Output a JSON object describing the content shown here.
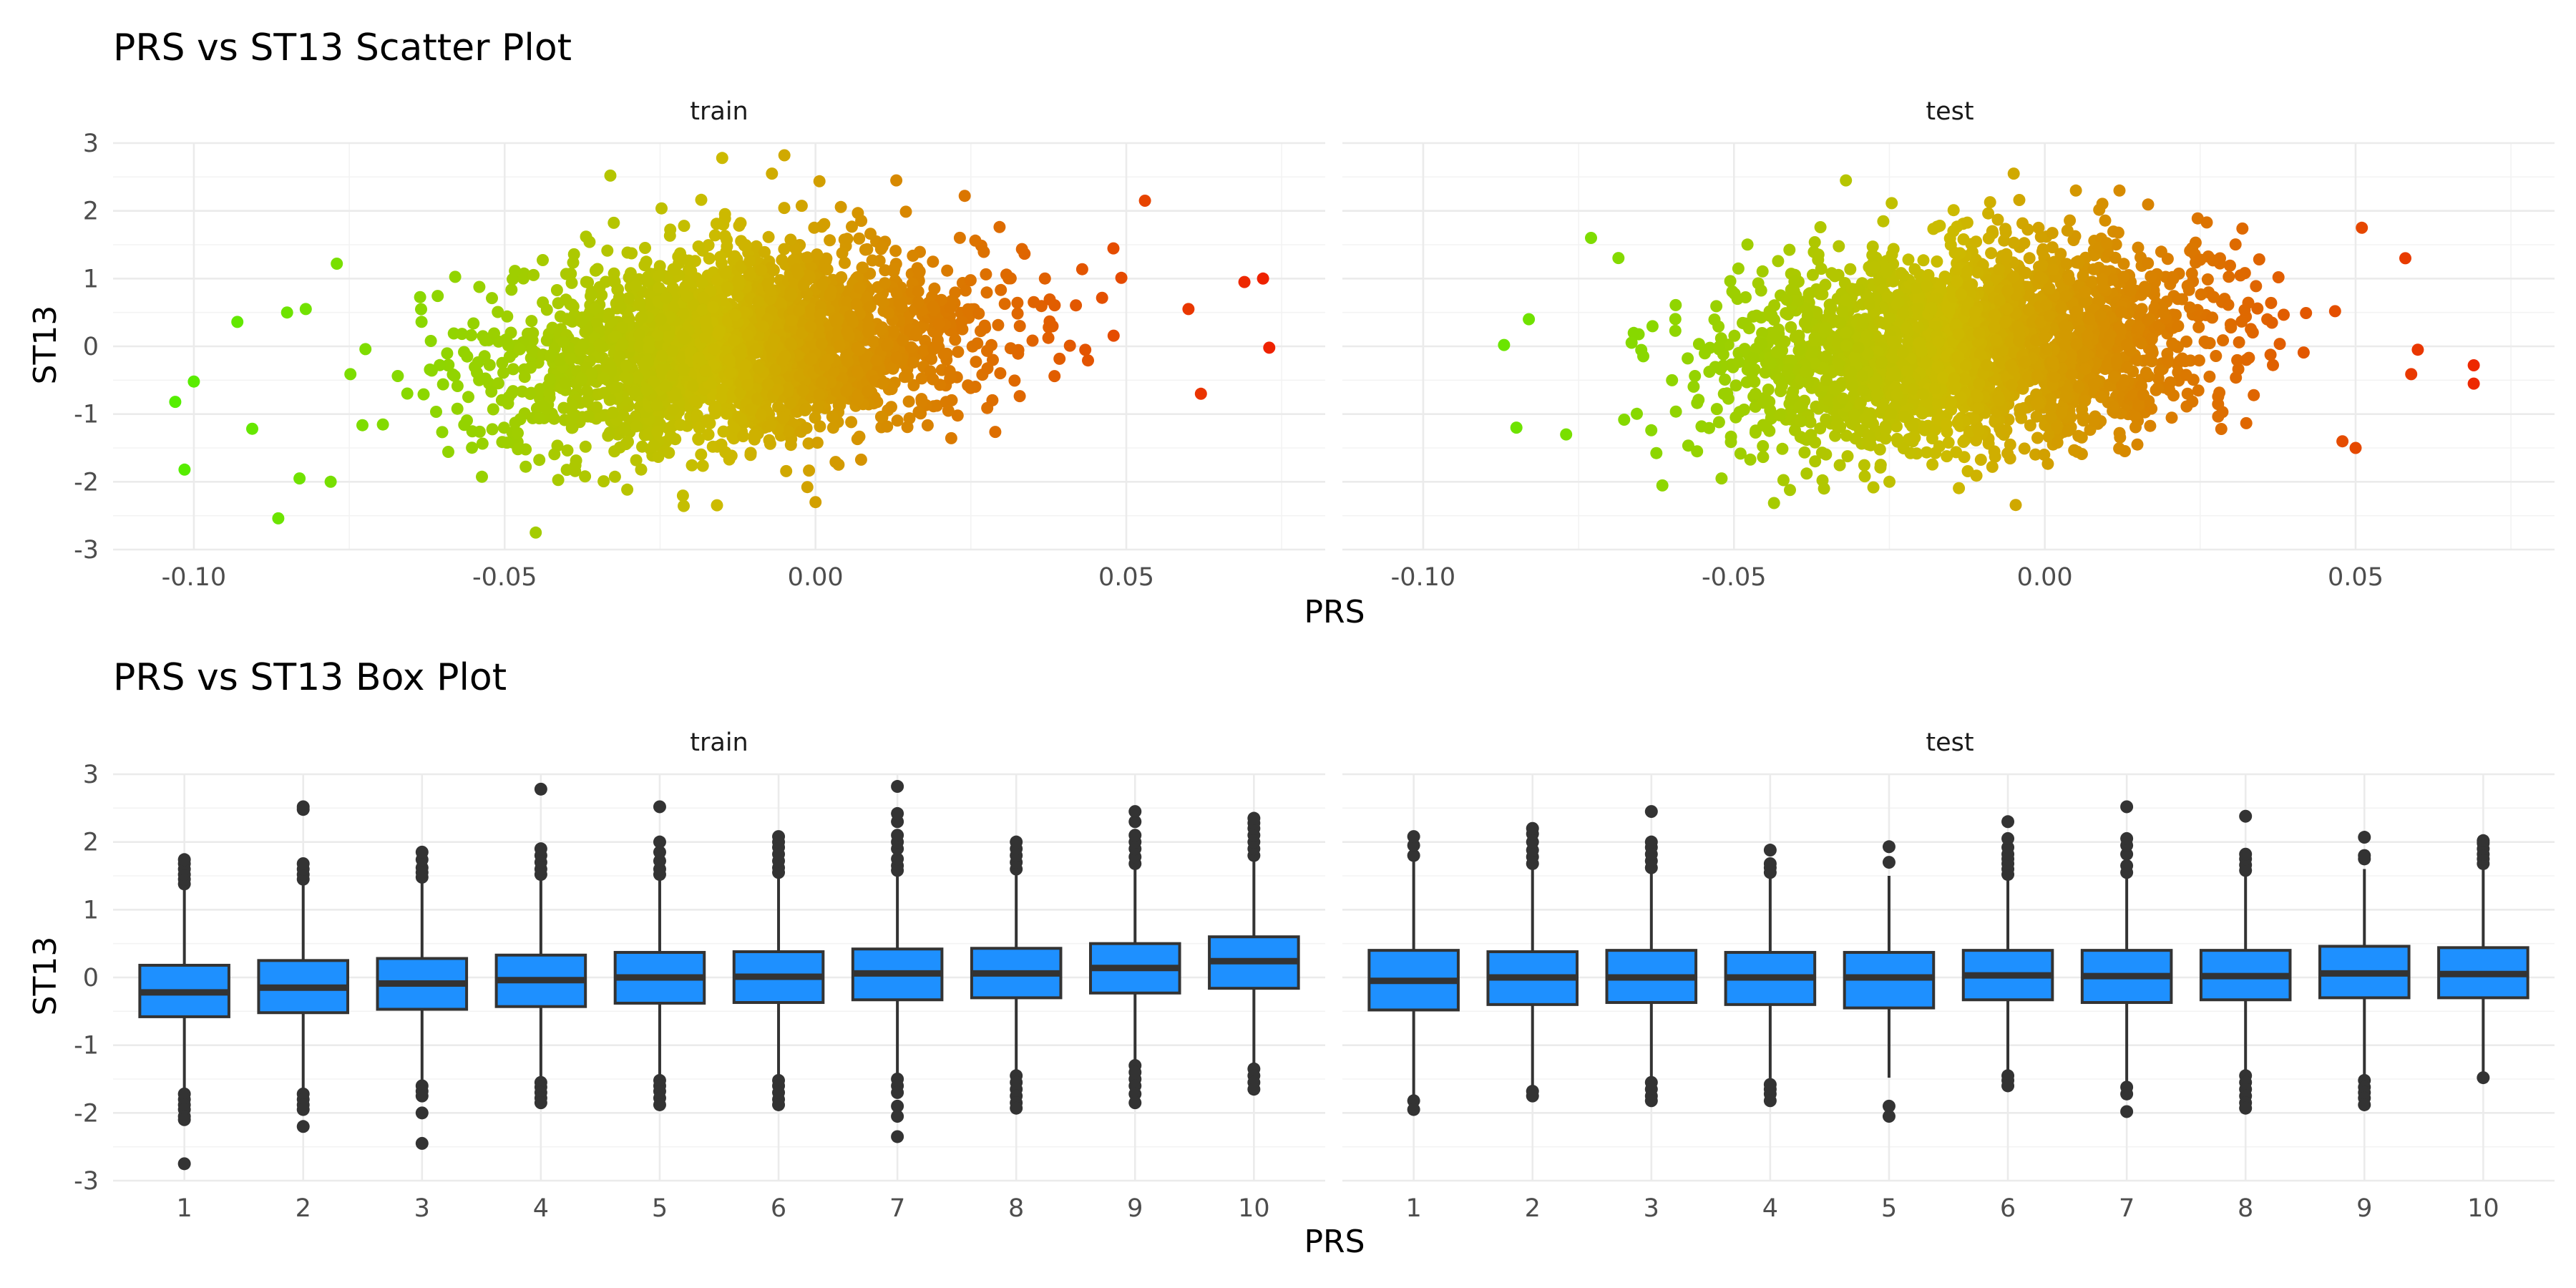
{
  "figure": {
    "scatter_title": "PRS vs ST13 Scatter Plot",
    "box_title": "PRS vs ST13 Box Plot",
    "xlabel": "PRS",
    "ylabel": "ST13",
    "facets": [
      "train",
      "test"
    ]
  },
  "chart_data": [
    {
      "type": "scatter",
      "title": "PRS vs ST13 Scatter Plot",
      "xlabel": "PRS",
      "ylabel": "ST13",
      "xlim": [
        -0.113,
        0.082
      ],
      "ylim": [
        -3,
        3
      ],
      "x_ticks": [
        -0.1,
        -0.05,
        0.0,
        0.05
      ],
      "x_tick_labels": [
        "-0.10",
        "-0.05",
        "0.00",
        "0.05"
      ],
      "y_ticks": [
        -3,
        -2,
        -1,
        0,
        1,
        2,
        3
      ],
      "y_tick_labels": [
        "-3",
        "-2",
        "-1",
        "0",
        "1",
        "2",
        "3"
      ],
      "grid": true,
      "legend": "none",
      "color_scale": {
        "low": "#55ee00",
        "mid": "#ccbb00",
        "high": "#ee2200",
        "mapped_to": "PRS"
      },
      "panels": [
        {
          "facet": "train",
          "point_summary": {
            "x_mean": -0.012,
            "x_sd": 0.019,
            "y_mean": 0.0,
            "y_sd": 0.72,
            "correlation": 0.2
          },
          "extreme_points": [
            [
              -0.1015,
              -1.82
            ],
            [
              -0.103,
              -0.82
            ],
            [
              -0.1,
              -0.52
            ],
            [
              -0.093,
              0.36
            ],
            [
              -0.085,
              0.5
            ],
            [
              -0.082,
              0.55
            ],
            [
              -0.077,
              1.22
            ],
            [
              -0.078,
              -2.0
            ],
            [
              -0.083,
              -1.95
            ],
            [
              -0.045,
              -2.75
            ],
            [
              -0.033,
              2.52
            ],
            [
              -0.015,
              2.78
            ],
            [
              -0.007,
              2.55
            ],
            [
              -0.005,
              2.82
            ],
            [
              0.0,
              -2.3
            ],
            [
              0.013,
              2.45
            ],
            [
              0.053,
              2.15
            ],
            [
              0.06,
              0.55
            ],
            [
              0.062,
              -0.7
            ],
            [
              0.069,
              0.95
            ],
            [
              0.072,
              1.0
            ],
            [
              0.073,
              -0.02
            ]
          ]
        },
        {
          "facet": "test",
          "point_summary": {
            "x_mean": -0.012,
            "x_sd": 0.019,
            "y_mean": 0.0,
            "y_sd": 0.72,
            "correlation": 0.2
          },
          "extreme_points": [
            [
              -0.087,
              0.02
            ],
            [
              -0.085,
              -1.2
            ],
            [
              -0.083,
              0.4
            ],
            [
              -0.073,
              1.6
            ],
            [
              -0.077,
              -1.3
            ],
            [
              -0.052,
              -1.95
            ],
            [
              -0.032,
              2.45
            ],
            [
              -0.025,
              -2.0
            ],
            [
              -0.005,
              2.55
            ],
            [
              0.005,
              2.3
            ],
            [
              0.051,
              1.75
            ],
            [
              0.05,
              -1.5
            ],
            [
              0.058,
              1.3
            ],
            [
              0.06,
              -0.05
            ],
            [
              0.069,
              -0.28
            ],
            [
              0.069,
              -0.55
            ]
          ]
        }
      ]
    },
    {
      "type": "box",
      "title": "PRS vs ST13 Box Plot",
      "xlabel": "PRS",
      "ylabel": "ST13",
      "categories": [
        "1",
        "2",
        "3",
        "4",
        "5",
        "6",
        "7",
        "8",
        "9",
        "10"
      ],
      "ylim": [
        -3,
        3
      ],
      "y_ticks": [
        -3,
        -2,
        -1,
        0,
        1,
        2,
        3
      ],
      "y_tick_labels": [
        "-3",
        "-2",
        "-1",
        "0",
        "1",
        "2",
        "3"
      ],
      "grid": true,
      "box_color": "#1e90ff",
      "outline_color": "#333333",
      "panels": [
        {
          "facet": "train",
          "boxes": [
            {
              "q1": -0.58,
              "median": -0.22,
              "q3": 0.18,
              "low": -1.7,
              "high": 1.3,
              "outliers": [
                1.38,
                1.45,
                1.52,
                1.6,
                1.68,
                1.74,
                -1.72,
                -1.8,
                -1.88,
                -1.95,
                -2.05,
                -2.1,
                -2.75
              ]
            },
            {
              "q1": -0.52,
              "median": -0.15,
              "q3": 0.25,
              "low": -1.65,
              "high": 1.38,
              "outliers": [
                1.45,
                1.52,
                1.6,
                1.68,
                2.48,
                2.52,
                -1.72,
                -1.8,
                -1.88,
                -1.95,
                -2.2
              ]
            },
            {
              "q1": -0.47,
              "median": -0.09,
              "q3": 0.28,
              "low": -1.56,
              "high": 1.4,
              "outliers": [
                1.48,
                1.55,
                1.62,
                1.74,
                1.85,
                -1.6,
                -1.68,
                -1.75,
                -2.0,
                -2.45
              ]
            },
            {
              "q1": -0.43,
              "median": -0.04,
              "q3": 0.33,
              "low": -1.5,
              "high": 1.45,
              "outliers": [
                1.52,
                1.6,
                1.7,
                1.8,
                1.9,
                2.78,
                -1.55,
                -1.62,
                -1.7,
                -1.78,
                -1.85
              ]
            },
            {
              "q1": -0.38,
              "median": 0.0,
              "q3": 0.37,
              "low": -1.48,
              "high": 1.45,
              "outliers": [
                1.52,
                1.6,
                1.72,
                1.85,
                2.0,
                2.52,
                -1.52,
                -1.6,
                -1.68,
                -1.78,
                -1.88
              ]
            },
            {
              "q1": -0.37,
              "median": 0.01,
              "q3": 0.38,
              "low": -1.48,
              "high": 1.48,
              "outliers": [
                1.55,
                1.62,
                1.72,
                1.82,
                1.92,
                2.0,
                2.08,
                -1.52,
                -1.6,
                -1.7,
                -1.8,
                -1.88
              ]
            },
            {
              "q1": -0.33,
              "median": 0.06,
              "q3": 0.42,
              "low": -1.45,
              "high": 1.5,
              "outliers": [
                1.58,
                1.65,
                1.75,
                1.9,
                2.0,
                2.1,
                2.3,
                2.42,
                2.82,
                -1.5,
                -1.6,
                -1.7,
                -1.9,
                -2.05,
                -2.35
              ]
            },
            {
              "q1": -0.3,
              "median": 0.06,
              "q3": 0.43,
              "low": -1.4,
              "high": 1.52,
              "outliers": [
                1.6,
                1.7,
                1.8,
                1.9,
                2.0,
                -1.45,
                -1.55,
                -1.65,
                -1.75,
                -1.85,
                -1.93
              ]
            },
            {
              "q1": -0.23,
              "median": 0.14,
              "q3": 0.5,
              "low": -1.25,
              "high": 1.6,
              "outliers": [
                1.68,
                1.78,
                1.9,
                2.0,
                2.1,
                2.3,
                2.45,
                -1.3,
                -1.4,
                -1.5,
                -1.6,
                -1.72,
                -1.85
              ]
            },
            {
              "q1": -0.16,
              "median": 0.24,
              "q3": 0.6,
              "low": -1.3,
              "high": 1.72,
              "outliers": [
                1.8,
                1.9,
                2.0,
                2.1,
                2.2,
                2.28,
                2.35,
                -1.35,
                -1.45,
                -1.55,
                -1.65
              ]
            }
          ]
        },
        {
          "facet": "test",
          "boxes": [
            {
              "q1": -0.48,
              "median": -0.05,
              "q3": 0.4,
              "low": -1.78,
              "high": 1.72,
              "outliers": [
                1.8,
                1.95,
                2.08,
                -1.82,
                -1.95
              ]
            },
            {
              "q1": -0.4,
              "median": 0.0,
              "q3": 0.38,
              "low": -1.62,
              "high": 1.6,
              "outliers": [
                1.68,
                1.78,
                1.88,
                2.0,
                2.12,
                2.2,
                -1.68,
                -1.75
              ]
            },
            {
              "q1": -0.37,
              "median": 0.0,
              "q3": 0.4,
              "low": -1.5,
              "high": 1.55,
              "outliers": [
                1.62,
                1.72,
                1.82,
                1.92,
                2.0,
                2.45,
                -1.55,
                -1.65,
                -1.75,
                -1.82
              ]
            },
            {
              "q1": -0.4,
              "median": 0.0,
              "q3": 0.37,
              "low": -1.52,
              "high": 1.5,
              "outliers": [
                1.55,
                1.62,
                1.68,
                1.88,
                -1.58,
                -1.65,
                -1.72,
                -1.82
              ]
            },
            {
              "q1": -0.45,
              "median": 0.0,
              "q3": 0.37,
              "low": -1.48,
              "high": 1.5,
              "outliers": [
                1.7,
                1.93,
                -1.9,
                -2.05
              ]
            },
            {
              "q1": -0.33,
              "median": 0.03,
              "q3": 0.4,
              "low": -1.42,
              "high": 1.45,
              "outliers": [
                1.52,
                1.6,
                1.68,
                1.75,
                1.82,
                1.92,
                2.05,
                2.3,
                -1.45,
                -1.52,
                -1.6
              ]
            },
            {
              "q1": -0.37,
              "median": 0.02,
              "q3": 0.4,
              "low": -1.55,
              "high": 1.48,
              "outliers": [
                1.55,
                1.65,
                1.82,
                1.95,
                2.05,
                2.52,
                -1.62,
                -1.72,
                -1.98
              ]
            },
            {
              "q1": -0.33,
              "median": 0.02,
              "q3": 0.4,
              "low": -1.4,
              "high": 1.5,
              "outliers": [
                1.58,
                1.66,
                1.75,
                1.82,
                2.38,
                -1.45,
                -1.55,
                -1.65,
                -1.75,
                -1.85,
                -1.93
              ]
            },
            {
              "q1": -0.3,
              "median": 0.06,
              "q3": 0.46,
              "low": -1.45,
              "high": 1.6,
              "outliers": [
                1.75,
                1.8,
                2.07,
                -1.52,
                -1.62,
                -1.7,
                -1.78,
                -1.88
              ]
            },
            {
              "q1": -0.3,
              "median": 0.05,
              "q3": 0.44,
              "low": -1.4,
              "high": 1.6,
              "outliers": [
                1.68,
                1.75,
                1.82,
                1.9,
                1.98,
                2.02,
                -1.48
              ]
            }
          ]
        }
      ]
    }
  ]
}
